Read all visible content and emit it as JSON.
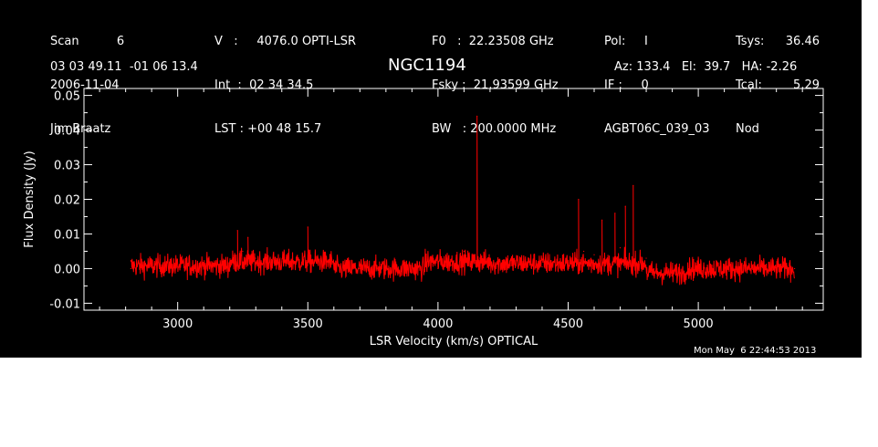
{
  "header": {
    "col1": [
      "Scan          6",
      "2006-11-04",
      "Jim Braatz"
    ],
    "col2": [
      "V   :     4076.0 OPTI-LSR",
      "Int  :  02 34 34.5",
      "LST : +00 48 15.7"
    ],
    "col3": [
      "F0   :  22.23508 GHz",
      "Fsky :  21.93599 GHz",
      "BW   : 200.0000 MHz"
    ],
    "col4": [
      "Pol:     I",
      "IF :     0",
      "AGBT06C_039_03"
    ],
    "col5a": [
      "Tsys:",
      "Tcal:",
      "Nod"
    ],
    "col5b": [
      "36.46",
      "5.29",
      ""
    ],
    "coords": "03 03 49.11  -01 06 13.4",
    "source": "NGC1194",
    "azel": "Az: 133.4   El:  39.7   HA: -2.26",
    "timestamp": "Mon May  6 22:44:53 2013"
  },
  "colors": {
    "background": "#000000",
    "axes": "#ffffff",
    "trace": "#ff0000"
  },
  "chart_data": {
    "type": "line",
    "title": "NGC1194",
    "xlabel": "LSR Velocity (km/s) OPTICAL",
    "ylabel": "Flux Density (Jy)",
    "xlim": [
      2640,
      5480
    ],
    "ylim": [
      -0.012,
      0.052
    ],
    "x_ticks": [
      3000,
      3500,
      4000,
      4500,
      5000
    ],
    "x_tick_labels": [
      "3000",
      "3500",
      "4000",
      "4500",
      "5000"
    ],
    "y_ticks": [
      -0.01,
      0.0,
      0.01,
      0.02,
      0.03,
      0.04,
      0.05
    ],
    "y_tick_labels": [
      "-0.01",
      "0.00",
      "0.01",
      "0.02",
      "0.03",
      "0.04",
      "0.05"
    ],
    "grid": false,
    "legend": "none",
    "series": [
      {
        "x": [
          2820,
          2900,
          3000,
          3100,
          3200,
          3230,
          3250,
          3270,
          3300,
          3400,
          3480,
          3500,
          3550,
          3600,
          3700,
          3800,
          3900,
          4000,
          4050,
          4100,
          4140,
          4150,
          4160,
          4200,
          4300,
          4400,
          4500,
          4540,
          4560,
          4600,
          4630,
          4650,
          4680,
          4700,
          4720,
          4750,
          4800,
          4820,
          4900,
          5000,
          5100,
          5200,
          5300,
          5350,
          5370
        ],
        "y": [
          0.0,
          0.001,
          0.0005,
          0.001,
          0.002,
          0.011,
          0.005,
          0.009,
          0.003,
          0.002,
          0.004,
          0.012,
          0.003,
          0.001,
          0.0,
          -0.0005,
          -0.001,
          0.0,
          0.001,
          0.005,
          0.004,
          0.044,
          0.003,
          0.002,
          0.001,
          0.0005,
          0.0,
          0.02,
          0.005,
          0.004,
          0.014,
          0.003,
          0.016,
          0.006,
          0.018,
          0.024,
          0.003,
          -0.001,
          -0.0005,
          -0.0005,
          0.0,
          0.0,
          0.0,
          0.001,
          0.0
        ]
      }
    ]
  }
}
